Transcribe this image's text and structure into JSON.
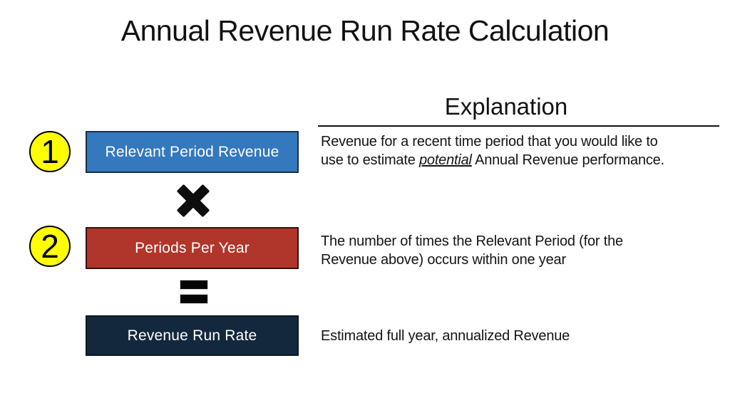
{
  "page": {
    "title": "Annual Revenue Run Rate Calculation",
    "background_color": "#ffffff"
  },
  "explanation": {
    "header": "Explanation",
    "items": [
      {
        "line1": "Revenue for a recent time period that you would like to",
        "line2_before": "use to estimate ",
        "line2_emphasis": "potential",
        "line2_after": " Annual Revenue performance."
      },
      {
        "line1": "The number of times the Relevant Period (for the",
        "line2": "Revenue above) occurs within one year"
      },
      {
        "line1": "Estimated full year, annualized Revenue"
      }
    ]
  },
  "diagram": {
    "badge_color": "#ffff00",
    "steps": [
      {
        "number": "1",
        "label": "Relevant Period Revenue",
        "fill": "#3478bd",
        "border": "#1c2f47"
      },
      {
        "number": "2",
        "label": "Periods Per Year",
        "fill": "#b0352b",
        "border": "#33120f"
      },
      {
        "label": "Revenue Run Rate",
        "fill": "#13283d",
        "border": "#0b1826"
      }
    ],
    "operators": [
      {
        "name": "multiply",
        "symbol": "✖"
      },
      {
        "name": "equals",
        "symbol": "="
      }
    ]
  }
}
